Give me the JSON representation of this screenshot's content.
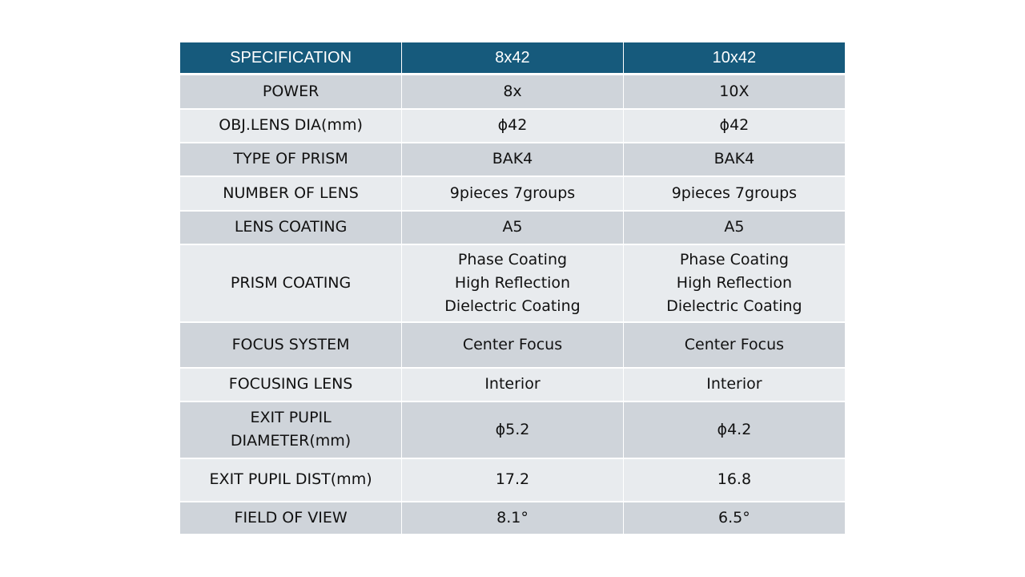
{
  "table": {
    "headers": [
      "SPECIFICATION",
      "8x42",
      "10x42"
    ],
    "rows": [
      {
        "spec": "POWER",
        "a": [
          "8x"
        ],
        "b": [
          "10X"
        ]
      },
      {
        "spec": "OBJ.LENS DIA(mm)",
        "a": [
          "ϕ42"
        ],
        "b": [
          "ϕ42"
        ]
      },
      {
        "spec": "TYPE OF PRISM",
        "a": [
          "BAK4"
        ],
        "b": [
          "BAK4"
        ]
      },
      {
        "spec": "NUMBER OF LENS",
        "a": [
          "9pieces 7groups"
        ],
        "b": [
          "9pieces 7groups"
        ]
      },
      {
        "spec": "LENS COATING",
        "a": [
          "A5"
        ],
        "b": [
          "A5"
        ]
      },
      {
        "spec": "PRISM COATING",
        "a": [
          "Phase Coating",
          "High Reflection",
          "Dielectric Coating"
        ],
        "b": [
          "Phase Coating",
          "High Reflection",
          "Dielectric Coating"
        ]
      },
      {
        "spec": "FOCUS SYSTEM",
        "a": [
          "Center Focus"
        ],
        "b": [
          "Center Focus"
        ]
      },
      {
        "spec": "FOCUSING LENS",
        "a": [
          "Interior"
        ],
        "b": [
          "Interior"
        ]
      },
      {
        "spec": "EXIT PUPIL DIAMETER(mm)",
        "spec_lines": [
          "EXIT PUPIL",
          "DIAMETER(mm)"
        ],
        "a": [
          "ϕ5.2"
        ],
        "b": [
          "ϕ4.2"
        ]
      },
      {
        "spec": "EXIT PUPIL DIST(mm)",
        "a": [
          "17.2"
        ],
        "b": [
          "16.8"
        ]
      },
      {
        "spec": "FIELD OF VIEW",
        "a": [
          "8.1°"
        ],
        "b": [
          "6.5°"
        ]
      }
    ]
  },
  "colors": {
    "header_bg": "#165a7c",
    "row_dark": "#cfd4da",
    "row_light": "#e8ebee"
  }
}
